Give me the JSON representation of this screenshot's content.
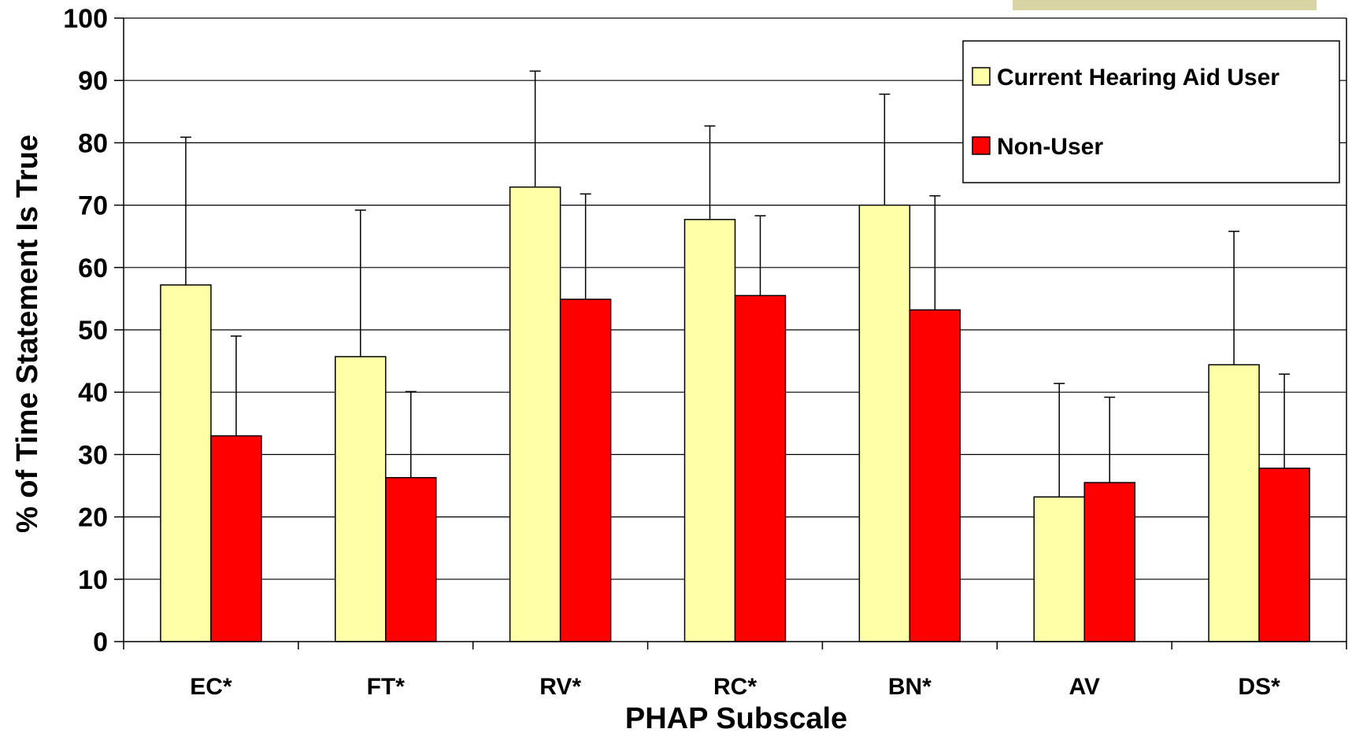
{
  "chart_data": {
    "type": "bar",
    "title": "",
    "xlabel": "PHAP Subscale",
    "ylabel": "% of Time Statement Is True",
    "ylim": [
      0,
      100
    ],
    "yticks": [
      0,
      10,
      20,
      30,
      40,
      50,
      60,
      70,
      80,
      90,
      100
    ],
    "grid": "horizontal",
    "legend_position": "top-right",
    "categories": [
      "EC*",
      "FT*",
      "RV*",
      "RC*",
      "BN*",
      "AV",
      "DS*"
    ],
    "series": [
      {
        "name": "Current Hearing Aid User",
        "color": "#FFFFA8",
        "values": [
          57.2,
          45.7,
          72.9,
          67.7,
          70.0,
          23.2,
          44.4
        ],
        "error_upper": [
          80.9,
          69.2,
          91.5,
          82.7,
          87.8,
          41.4,
          65.8
        ]
      },
      {
        "name": "Non-User",
        "color": "#FF0000",
        "values": [
          33.0,
          26.3,
          54.9,
          55.5,
          53.2,
          25.5,
          27.8
        ],
        "error_upper": [
          49.0,
          40.1,
          71.8,
          68.3,
          71.5,
          39.2,
          42.9
        ]
      }
    ]
  }
}
